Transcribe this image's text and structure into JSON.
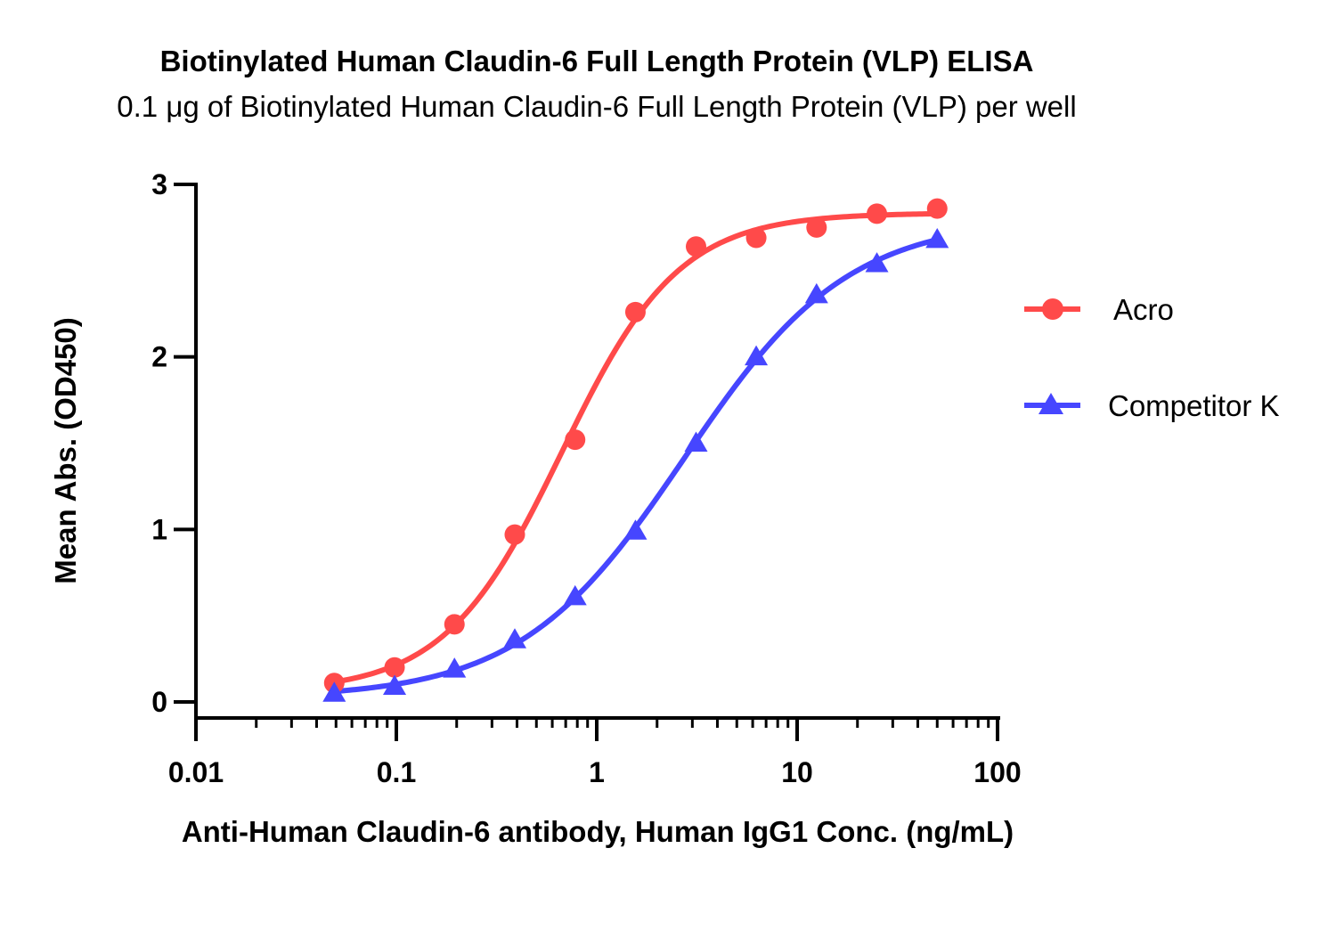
{
  "chart_data": {
    "type": "scatter",
    "title": "Biotinylated Human Claudin-6 Full Length Protein (VLP) ELISA",
    "subtitle": "0.1 μg of Biotinylated Human Claudin-6 Full Length Protein (VLP) per well",
    "xlabel": "Anti-Human Claudin-6 antibody, Human IgG1 Conc. (ng/mL)",
    "ylabel": "Mean Abs. (OD450)",
    "x_scale": "log",
    "xlim": [
      0.01,
      100
    ],
    "ylim": [
      0,
      3
    ],
    "x_ticks": [
      0.01,
      0.1,
      1,
      10,
      100
    ],
    "x_tick_labels": [
      "0.01",
      "0.1",
      "1",
      "10",
      "100"
    ],
    "y_ticks": [
      0,
      1,
      2,
      3
    ],
    "y_tick_labels": [
      "0",
      "1",
      "2",
      "3"
    ],
    "grid": false,
    "legend_position": "right",
    "series": [
      {
        "name": "Acro",
        "color": "#ff4a4a",
        "marker": "circle",
        "fit": "4PL",
        "x": [
          0.049,
          0.098,
          0.195,
          0.39,
          0.78,
          1.56,
          3.13,
          6.25,
          12.5,
          25,
          50
        ],
        "y": [
          0.11,
          0.2,
          0.45,
          0.97,
          1.52,
          2.26,
          2.64,
          2.69,
          2.75,
          2.83,
          2.86
        ]
      },
      {
        "name": "Competitor K",
        "color": "#4646ff",
        "marker": "triangle",
        "fit": "4PL",
        "x": [
          0.049,
          0.098,
          0.195,
          0.39,
          0.78,
          1.56,
          3.13,
          6.25,
          12.5,
          25,
          50
        ],
        "y": [
          0.05,
          0.09,
          0.19,
          0.36,
          0.61,
          0.99,
          1.5,
          2.0,
          2.36,
          2.54,
          2.68
        ]
      }
    ]
  }
}
